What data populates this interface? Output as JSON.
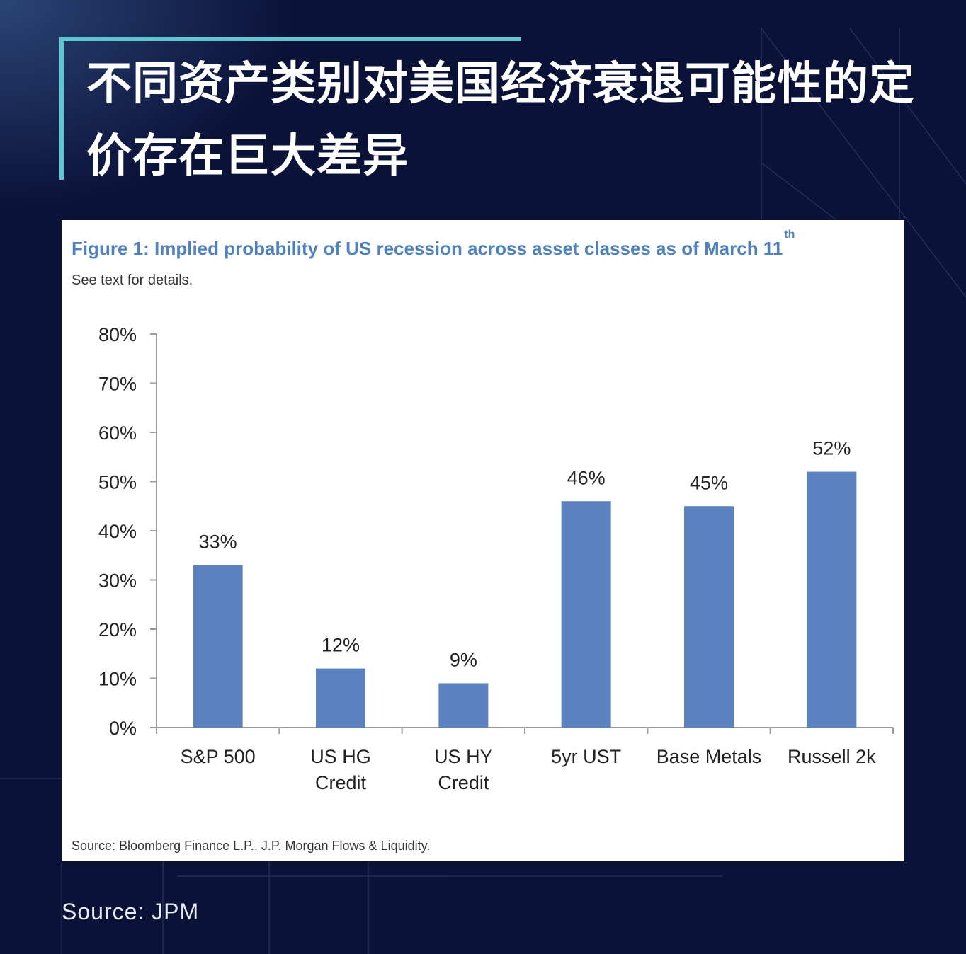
{
  "header": {
    "title": "不同资产类别对美国经济衰退可能性的定价存在巨大差异"
  },
  "figure": {
    "title": "Figure 1: Implied probability of US recession across asset classes as of March 11",
    "title_suffix": "th",
    "subtitle": "See text for details.",
    "source": "Source: Bloomberg Finance L.P., J.P. Morgan Flows & Liquidity."
  },
  "chart_data": {
    "type": "bar",
    "title": "Figure 1: Implied probability of US recession across asset classes as of March 11th",
    "categories": [
      [
        "S&P 500"
      ],
      [
        "US HG",
        "Credit"
      ],
      [
        "US HY",
        "Credit"
      ],
      [
        "5yr UST"
      ],
      [
        "Base Metals"
      ],
      [
        "Russell 2k"
      ]
    ],
    "values": [
      33,
      12,
      9,
      46,
      45,
      52
    ],
    "data_labels": [
      "33%",
      "12%",
      "9%",
      "46%",
      "45%",
      "52%"
    ],
    "yticks": [
      "0%",
      "10%",
      "20%",
      "30%",
      "40%",
      "50%",
      "60%",
      "70%",
      "80%"
    ],
    "ylim": [
      0,
      80
    ],
    "xlabel": "",
    "ylabel": "",
    "bar_color": "#5b82be",
    "grid": false,
    "legend": "none"
  },
  "footer": {
    "source": "Source: JPM"
  },
  "colors": {
    "background": "#0a1238",
    "accent": "#5fc6cf",
    "figure_title": "#4f81bd"
  }
}
